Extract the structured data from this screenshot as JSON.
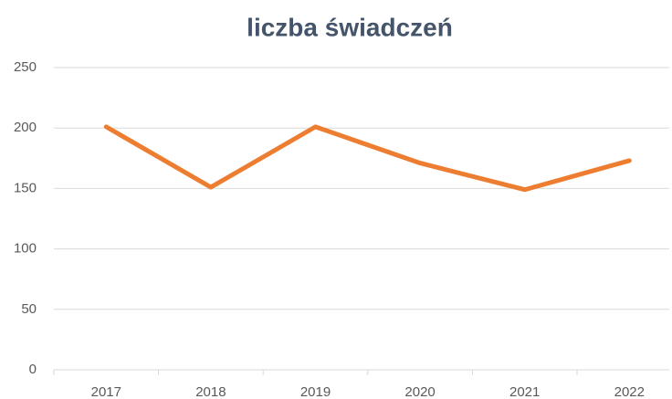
{
  "chart_data": {
    "type": "line",
    "title": "liczba świadczeń",
    "categories": [
      "2017",
      "2018",
      "2019",
      "2020",
      "2021",
      "2022"
    ],
    "series": [
      {
        "name": "liczba świadczeń",
        "color": "#ed7d31",
        "values": [
          201,
          151,
          201,
          171,
          149,
          173
        ]
      }
    ],
    "ylim": [
      0,
      250
    ],
    "yticks": [
      0,
      50,
      100,
      150,
      200,
      250
    ],
    "grid": true,
    "legend": false
  }
}
